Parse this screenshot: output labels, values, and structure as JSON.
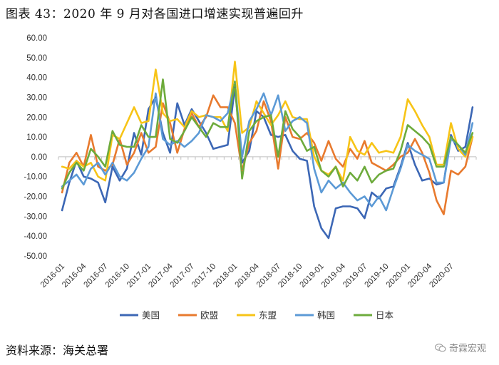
{
  "title": "图表 43：2020 年 9 月对各国进口增速实现普遍回升",
  "source": "资料来源：海关总署",
  "watermark": "奇霖宏观",
  "watermark_icon": "wechat-icon",
  "chart_data": {
    "type": "line",
    "title": "图表 43：2020 年 9 月对各国进口增速实现普遍回升",
    "xlabel": "",
    "ylabel": "",
    "ylim": [
      -50,
      60
    ],
    "yticks": [
      60,
      50,
      40,
      30,
      20,
      10,
      0,
      -10,
      -20,
      -30,
      -40,
      -50
    ],
    "ytick_labels": [
      "60.00",
      "50.00",
      "40.00",
      "30.00",
      "20.00",
      "10.00",
      "0.00",
      "-10.00",
      "-20.00",
      "-30.00",
      "-40.00",
      "-50.00"
    ],
    "start_month": "2016-01",
    "xtick_labels": [
      "2016-01",
      "2016-04",
      "2016-07",
      "2016-10",
      "2017-01",
      "2017-04",
      "2017-07",
      "2017-10",
      "2018-01",
      "2018-04",
      "2018-07",
      "2018-10",
      "2019-01",
      "2019-04",
      "2019-07",
      "2019-10",
      "2020-01",
      "2020-04",
      "2020-07"
    ],
    "xtick_step": 3,
    "legend_position": "bottom",
    "grid": false,
    "series": [
      {
        "name": "美国",
        "color": "#3c67b5",
        "values": [
          -27,
          -13,
          -2,
          -10,
          -11,
          -13,
          -23,
          -5,
          -12,
          -6,
          12,
          1,
          24,
          30,
          12,
          2,
          27,
          16,
          24,
          18,
          12,
          4,
          5,
          6,
          35,
          -3,
          3,
          23,
          20,
          11,
          10,
          11,
          3,
          -1,
          -2,
          -25,
          -36,
          -41,
          -26,
          -25,
          -25,
          -26,
          -31,
          -18,
          -21,
          -16,
          -15,
          -5,
          7,
          -4,
          -12,
          -11,
          -14,
          -13,
          11,
          3,
          5,
          25
        ]
      },
      {
        "name": "欧盟",
        "color": "#e87a2e",
        "values": [
          -18,
          -3,
          2,
          -5,
          11,
          -5,
          -7,
          -4,
          9,
          -4,
          2,
          12,
          2,
          5,
          27,
          17,
          2,
          14,
          22,
          15,
          20,
          31,
          25,
          25,
          17,
          -7,
          7,
          13,
          28,
          18,
          -6,
          20,
          10,
          9,
          12,
          7,
          -2,
          8,
          -1,
          -5,
          4,
          -1,
          8,
          -3,
          -5,
          -7,
          -4,
          0,
          2,
          9,
          2,
          -8,
          -22,
          -29,
          -7,
          -9,
          -5,
          10
        ]
      },
      {
        "name": "东盟",
        "color": "#f7c417",
        "values": [
          -5,
          -6,
          -2,
          -5,
          -3,
          -10,
          -12,
          11,
          9,
          17,
          25,
          17,
          18,
          44,
          22,
          18,
          19,
          15,
          23,
          20,
          21,
          20,
          20,
          13,
          48,
          12,
          15,
          28,
          22,
          16,
          21,
          28,
          20,
          19,
          19,
          0,
          -7,
          -9,
          -5,
          -12,
          10,
          3,
          1,
          7,
          2,
          3,
          2,
          10,
          29,
          23,
          16,
          10,
          -4,
          -4,
          17,
          4,
          0,
          10
        ]
      },
      {
        "name": "韩国",
        "color": "#5c9ad6",
        "values": [
          -15,
          -12,
          -9,
          -14,
          -6,
          -3,
          -9,
          -3,
          -10,
          -12,
          -8,
          -1,
          5,
          32,
          9,
          6,
          8,
          5,
          8,
          12,
          21,
          20,
          18,
          22,
          37,
          0,
          18,
          24,
          32,
          21,
          31,
          13,
          18,
          20,
          17,
          -6,
          -18,
          -12,
          -16,
          -13,
          -18,
          -22,
          -20,
          -25,
          -20,
          -27,
          -16,
          -6,
          6,
          3,
          1,
          -1,
          -13,
          -13,
          9,
          6,
          1,
          17
        ]
      },
      {
        "name": "日本",
        "color": "#6dab3c",
        "values": [
          -16,
          -8,
          -3,
          -7,
          4,
          0,
          -5,
          13,
          6,
          5,
          5,
          16,
          10,
          10,
          39,
          9,
          7,
          13,
          20,
          15,
          10,
          17,
          15,
          15,
          38,
          -11,
          13,
          18,
          20,
          21,
          0,
          23,
          14,
          10,
          3,
          5,
          -7,
          -10,
          -5,
          -15,
          -8,
          -12,
          -5,
          -13,
          -9,
          -7,
          -6,
          3,
          16,
          13,
          10,
          6,
          -5,
          -5,
          10,
          6,
          2,
          12
        ]
      }
    ]
  }
}
